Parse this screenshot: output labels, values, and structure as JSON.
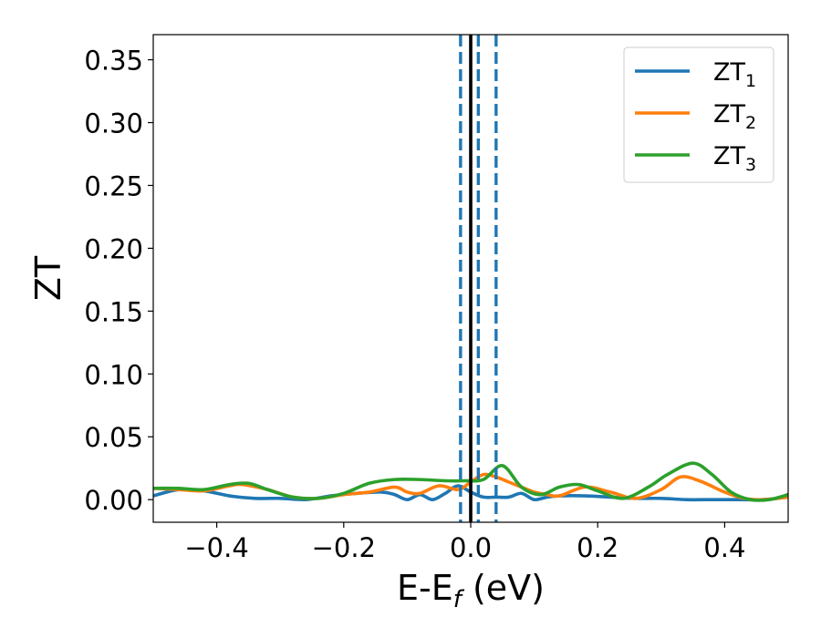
{
  "chart_data": {
    "type": "line",
    "xlabel": "E-E",
    "xlabel_sub": "f",
    "xlabel_unit": " (eV)",
    "ylabel": "ZT",
    "xlim": [
      -0.5,
      0.5
    ],
    "ylim": [
      -0.018,
      0.37
    ],
    "xticks": [
      -0.4,
      -0.2,
      0.0,
      0.2,
      0.4
    ],
    "xtick_labels": [
      "−0.4",
      "−0.2",
      "0.0",
      "0.2",
      "0.4"
    ],
    "yticks": [
      0.0,
      0.05,
      0.1,
      0.15,
      0.2,
      0.25,
      0.3,
      0.35
    ],
    "ytick_labels": [
      "0.00",
      "0.05",
      "0.10",
      "0.15",
      "0.20",
      "0.25",
      "0.30",
      "0.35"
    ],
    "grid": false,
    "legend_position": "top-right",
    "vlines": [
      {
        "x": 0.0,
        "style": "solid",
        "color": "#000000"
      },
      {
        "x": -0.016,
        "style": "dashed",
        "color": "#1f77b4"
      },
      {
        "x": 0.012,
        "style": "dashed",
        "color": "#1f77b4"
      },
      {
        "x": 0.04,
        "style": "dashed",
        "color": "#1f77b4"
      }
    ],
    "series": [
      {
        "name": "ZT",
        "sub": "1",
        "color": "#1f77b4",
        "x": [
          -0.5,
          -0.46,
          -0.42,
          -0.38,
          -0.34,
          -0.3,
          -0.26,
          -0.22,
          -0.18,
          -0.14,
          -0.12,
          -0.1,
          -0.08,
          -0.06,
          -0.04,
          -0.02,
          0.0,
          0.02,
          0.04,
          0.06,
          0.08,
          0.1,
          0.12,
          0.14,
          0.18,
          0.22,
          0.26,
          0.3,
          0.34,
          0.38,
          0.42,
          0.46,
          0.5
        ],
        "y": [
          0.003,
          0.008,
          0.007,
          0.003,
          0.001,
          0.001,
          0.0,
          0.003,
          0.005,
          0.006,
          0.004,
          0.0,
          0.004,
          0.0,
          0.005,
          0.011,
          0.006,
          0.002,
          0.002,
          0.002,
          0.005,
          0.0,
          0.002,
          0.003,
          0.003,
          0.002,
          0.001,
          0.001,
          0.0,
          0.0,
          0.0,
          0.0,
          0.002
        ]
      },
      {
        "name": "ZT",
        "sub": "2",
        "color": "#ff7f0e",
        "x": [
          -0.5,
          -0.46,
          -0.42,
          -0.38,
          -0.36,
          -0.32,
          -0.28,
          -0.24,
          -0.2,
          -0.16,
          -0.12,
          -0.1,
          -0.08,
          -0.05,
          -0.02,
          0.0,
          0.02,
          0.04,
          0.06,
          0.08,
          0.1,
          0.12,
          0.14,
          0.18,
          0.22,
          0.26,
          0.3,
          0.33,
          0.36,
          0.4,
          0.43,
          0.46,
          0.5
        ],
        "y": [
          0.009,
          0.008,
          0.007,
          0.011,
          0.012,
          0.008,
          0.002,
          0.001,
          0.004,
          0.006,
          0.01,
          0.006,
          0.005,
          0.011,
          0.008,
          0.014,
          0.02,
          0.018,
          0.014,
          0.01,
          0.006,
          0.004,
          0.003,
          0.01,
          0.006,
          0.001,
          0.008,
          0.018,
          0.015,
          0.006,
          0.001,
          0.0,
          0.002
        ]
      },
      {
        "name": "ZT",
        "sub": "3",
        "color": "#2ca02c",
        "x": [
          -0.5,
          -0.46,
          -0.42,
          -0.38,
          -0.35,
          -0.32,
          -0.28,
          -0.24,
          -0.2,
          -0.16,
          -0.12,
          -0.08,
          -0.04,
          -0.01,
          0.02,
          0.05,
          0.08,
          0.11,
          0.14,
          0.17,
          0.2,
          0.24,
          0.28,
          0.31,
          0.35,
          0.38,
          0.41,
          0.44,
          0.47,
          0.5
        ],
        "y": [
          0.009,
          0.009,
          0.008,
          0.012,
          0.013,
          0.008,
          0.002,
          0.001,
          0.005,
          0.013,
          0.016,
          0.016,
          0.015,
          0.015,
          0.016,
          0.027,
          0.01,
          0.004,
          0.01,
          0.012,
          0.007,
          0.001,
          0.01,
          0.02,
          0.029,
          0.02,
          0.006,
          0.0,
          0.0,
          0.004
        ]
      }
    ]
  }
}
